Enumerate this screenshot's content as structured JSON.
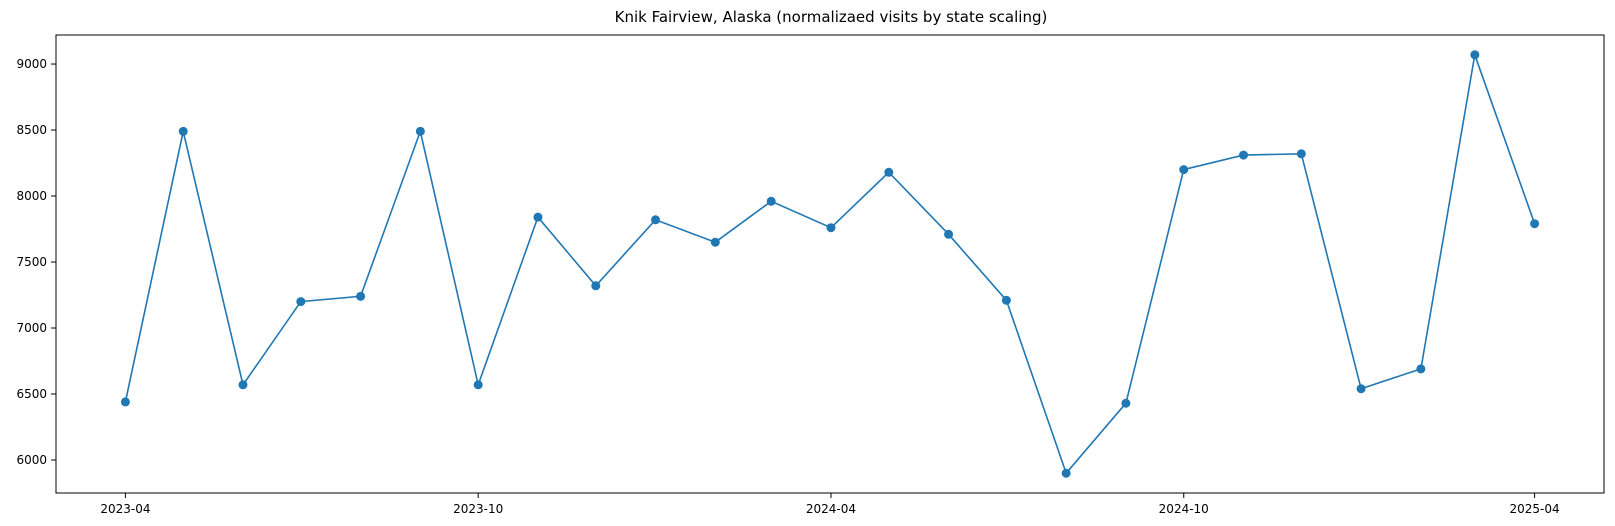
{
  "chart_data": {
    "type": "line",
    "title": "Knik Fairview, Alaska (normalizaed visits by state scaling)",
    "xlabel": "",
    "ylabel": "",
    "x_axis": "date",
    "xlim": [
      "2023-02-24",
      "2025-05-07"
    ],
    "ylim": [
      5750,
      9220
    ],
    "x_ticks": [
      {
        "date": "2023-04-01",
        "label": "2023-04"
      },
      {
        "date": "2023-10-01",
        "label": "2023-10"
      },
      {
        "date": "2024-04-01",
        "label": "2024-04"
      },
      {
        "date": "2024-10-01",
        "label": "2024-10"
      },
      {
        "date": "2025-04-01",
        "label": "2025-04"
      }
    ],
    "y_ticks": [
      6000,
      6500,
      7000,
      7500,
      8000,
      8500,
      9000
    ],
    "y_tick_labels": [
      "6000",
      "6500",
      "7000",
      "7500",
      "8000",
      "8500",
      "9000"
    ],
    "grid": false,
    "colors": {
      "series": "#1f77b4"
    },
    "series": [
      {
        "x": [
          "2023-04-01",
          "2023-05-01",
          "2023-06-01",
          "2023-07-01",
          "2023-08-01",
          "2023-09-01",
          "2023-10-01",
          "2023-11-01",
          "2023-12-01",
          "2024-01-01",
          "2024-02-01",
          "2024-03-01",
          "2024-04-01",
          "2024-05-01",
          "2024-06-01",
          "2024-07-01",
          "2024-08-01",
          "2024-09-01",
          "2024-10-01",
          "2024-11-01",
          "2024-12-01",
          "2025-01-01",
          "2025-02-01",
          "2025-03-01",
          "2025-04-01"
        ],
        "values": [
          6440,
          8490,
          6570,
          7200,
          7240,
          8490,
          6570,
          7840,
          7320,
          7820,
          7650,
          7960,
          7760,
          8180,
          7710,
          7210,
          5900,
          6430,
          8200,
          8310,
          8320,
          6540,
          6690,
          9070,
          7790
        ]
      }
    ]
  }
}
